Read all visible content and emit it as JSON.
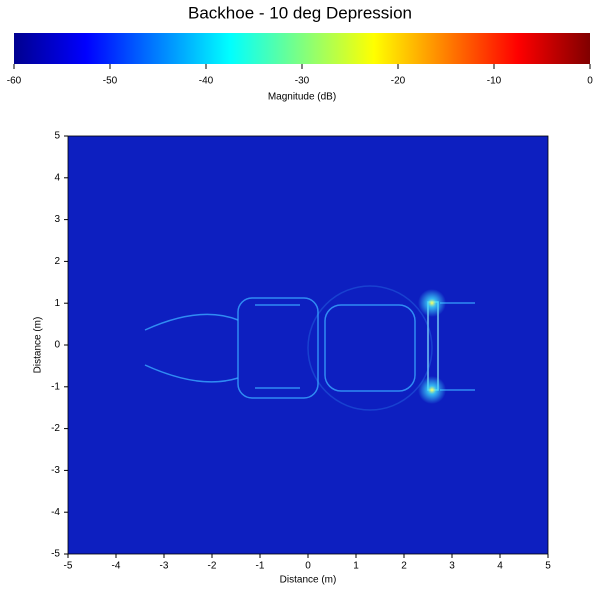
{
  "chart_data": {
    "type": "image",
    "title": "Backhoe - 10 deg Depression",
    "colorbar": {
      "label": "Magnitude (dB)",
      "lim": [
        -60,
        0
      ],
      "ticks": [
        -60,
        -50,
        -40,
        -30,
        -20,
        -10,
        0
      ]
    },
    "xlabel": "Distance (m)",
    "ylabel": "Distance (m)",
    "xlim": [
      -5,
      5
    ],
    "ylim": [
      -5,
      5
    ],
    "xticks": [
      -5,
      -4,
      -3,
      -2,
      -1,
      0,
      1,
      2,
      3,
      4,
      5
    ],
    "yticks": [
      -5,
      -4,
      -3,
      -2,
      -1,
      0,
      1,
      2,
      3,
      4,
      5
    ]
  }
}
